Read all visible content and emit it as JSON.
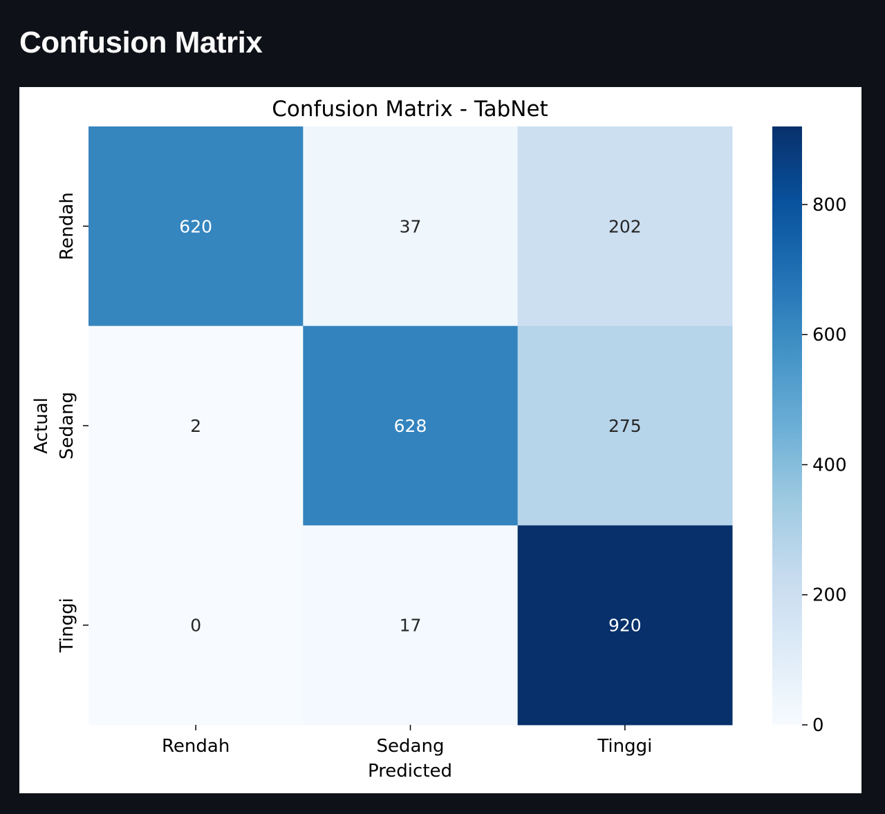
{
  "page": {
    "heading": "Confusion Matrix"
  },
  "chart_data": {
    "type": "heatmap",
    "title": "Confusion Matrix - TabNet",
    "xlabel": "Predicted",
    "ylabel": "Actual",
    "x_categories": [
      "Rendah",
      "Sedang",
      "Tinggi"
    ],
    "y_categories": [
      "Rendah",
      "Sedang",
      "Tinggi"
    ],
    "values": [
      [
        620,
        37,
        202
      ],
      [
        2,
        628,
        275
      ],
      [
        0,
        17,
        920
      ]
    ],
    "colormap": "Blues",
    "vmin": 0,
    "vmax": 920,
    "colorbar_ticks": [
      0,
      200,
      400,
      600,
      800
    ],
    "colorbar_tick_labels": [
      "0",
      "200",
      "400",
      "600",
      "800"
    ],
    "colors": {
      "low": "#f7fbff",
      "high": "#08306b"
    }
  }
}
